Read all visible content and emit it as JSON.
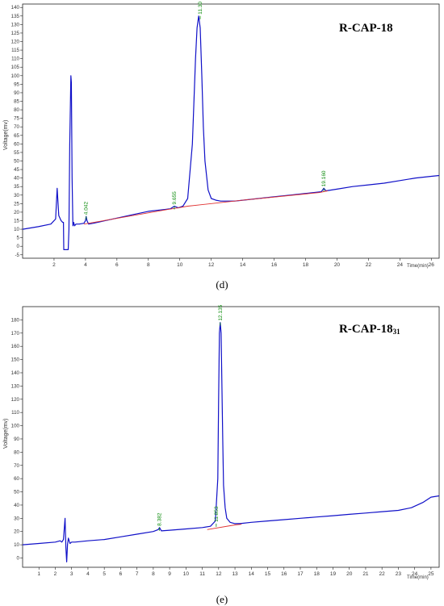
{
  "chart_data": [
    {
      "type": "line",
      "panel": "(d)",
      "sample_label": "R-CAP-18",
      "ylabel": "Voltage(mv)",
      "xlabel": "Time(min)",
      "xlim": [
        0,
        26.5
      ],
      "ylim": [
        -7,
        142
      ],
      "x_ticks": [
        2,
        4,
        6,
        8,
        10,
        12,
        14,
        16,
        18,
        20,
        22,
        24,
        26
      ],
      "y_ticks": [
        -5,
        0,
        5,
        10,
        15,
        20,
        25,
        30,
        35,
        40,
        45,
        50,
        55,
        60,
        65,
        70,
        75,
        80,
        85,
        90,
        95,
        100,
        105,
        110,
        115,
        120,
        125,
        130,
        135,
        140
      ],
      "grid": false,
      "series": [
        {
          "color": "#1010c8",
          "x": [
            0,
            1.0,
            1.8,
            2.1,
            2.2,
            2.3,
            2.45,
            2.55,
            2.6,
            2.62,
            2.9,
            2.95,
            3.0,
            3.07,
            3.1,
            3.15,
            3.2,
            3.25,
            3.3,
            3.4,
            3.6,
            3.9,
            4.0,
            4.04,
            4.1,
            4.2,
            4.5,
            5.0,
            6.0,
            7.0,
            8.0,
            9.0,
            9.4,
            9.655,
            9.9,
            10.2,
            10.5,
            10.8,
            11.0,
            11.1,
            11.2,
            11.3,
            11.4,
            11.5,
            11.6,
            11.8,
            12.0,
            12.3,
            12.6,
            13.0,
            13.5,
            14.0,
            15.0,
            16.0,
            17.0,
            18.0,
            19.0,
            19.16,
            19.3,
            20.0,
            21.0,
            22.0,
            23.0,
            24.0,
            25.0,
            26.0,
            26.5
          ],
          "y": [
            10,
            11.5,
            13,
            16,
            34,
            18,
            15,
            14,
            14,
            -2,
            -2,
            10,
            60,
            100,
            96,
            40,
            12,
            14,
            12,
            13,
            13,
            13.5,
            15,
            17.5,
            15,
            13,
            13.5,
            14.5,
            16.5,
            18.5,
            20.5,
            21.5,
            22,
            23.5,
            22.5,
            23.5,
            28,
            60,
            110,
            128,
            135,
            128,
            100,
            70,
            50,
            33,
            28,
            27,
            26.5,
            26.5,
            26.5,
            27,
            28,
            29,
            30,
            31,
            32,
            34,
            32.5,
            33.5,
            35,
            36,
            37,
            38.5,
            40,
            41,
            41.5
          ]
        },
        {
          "color": "#e03030",
          "x": [
            3.9,
            4.2,
            9.2,
            9.9,
            10.5,
            14.0,
            18.9,
            19.4
          ],
          "y": [
            13,
            13.5,
            21.5,
            22.5,
            23.5,
            27,
            31.5,
            32.5
          ]
        }
      ],
      "peak_labels": [
        {
          "x": 4.042,
          "y": 17.5,
          "text": "4.042"
        },
        {
          "x": 9.655,
          "y": 23.5,
          "text": "9.655"
        },
        {
          "x": 11.3,
          "y": 135,
          "text": "11.30"
        },
        {
          "x": 19.16,
          "y": 34,
          "text": "19.160"
        }
      ]
    },
    {
      "type": "line",
      "panel": "(e)",
      "sample_label": "R-CAP-18",
      "sample_subscript": "31",
      "ylabel": "Voltage(mv)",
      "xlabel": "Time(min)",
      "xlim": [
        0,
        25.5
      ],
      "ylim": [
        -7,
        190
      ],
      "x_ticks": [
        1,
        2,
        3,
        4,
        5,
        6,
        7,
        8,
        9,
        10,
        11,
        12,
        13,
        14,
        15,
        16,
        17,
        18,
        19,
        20,
        21,
        22,
        23,
        24,
        25
      ],
      "y_ticks": [
        0,
        10,
        20,
        30,
        40,
        50,
        60,
        70,
        80,
        90,
        100,
        110,
        120,
        130,
        140,
        150,
        160,
        170,
        180
      ],
      "grid": false,
      "series": [
        {
          "color": "#1010c8",
          "x": [
            0,
            1.0,
            2.0,
            2.3,
            2.4,
            2.5,
            2.6,
            2.65,
            2.7,
            2.75,
            2.8,
            2.9,
            3.0,
            3.2,
            4.0,
            5.0,
            6.0,
            7.0,
            8.0,
            8.3,
            8.38,
            8.5,
            9.0,
            10.0,
            11.0,
            11.5,
            11.8,
            11.95,
            12.0,
            12.05,
            12.1,
            12.15,
            12.2,
            12.25,
            12.3,
            12.4,
            12.5,
            12.7,
            13.0,
            13.3,
            14.0,
            15.0,
            16.0,
            17.0,
            18.0,
            19.0,
            20.0,
            21.0,
            22.0,
            23.0,
            23.8,
            24.5,
            25.0,
            25.5
          ],
          "y": [
            10,
            11,
            12,
            13,
            12,
            14,
            30,
            8,
            -3,
            10,
            15,
            11,
            12,
            12,
            13,
            14,
            16,
            18,
            20,
            21.5,
            23,
            20.5,
            21,
            22,
            23,
            24,
            28,
            60,
            120,
            170,
            178,
            170,
            130,
            90,
            55,
            38,
            30,
            27,
            26,
            26,
            27,
            28,
            29,
            30,
            31,
            32,
            33,
            34,
            35,
            36,
            38,
            42,
            46,
            47
          ]
        },
        {
          "color": "#e03030",
          "x": [
            11.3,
            13.0,
            13.4
          ],
          "y": [
            21.5,
            25,
            25.5
          ]
        }
      ],
      "peak_labels": [
        {
          "x": 8.382,
          "y": 23,
          "text": "8.382"
        },
        {
          "x": 11.853,
          "y": 26,
          "text": "11.853"
        },
        {
          "x": 12.1,
          "y": 178,
          "text": "12.135"
        }
      ]
    }
  ]
}
